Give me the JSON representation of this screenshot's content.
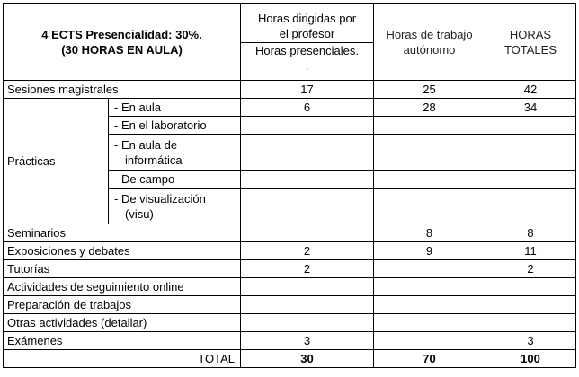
{
  "header": {
    "title_line1": "4 ECTS Presencialidad: 30%.",
    "title_line2": "(30 HORAS EN AULA)",
    "col_prof_line1": "Horas dirigidas por",
    "col_prof_line2": "el profesor",
    "col_presenciales_line1": "Horas presenciales.",
    "col_presenciales_line2": ".",
    "col_autonomo_line1": "Horas de trabajo",
    "col_autonomo_line2": "autónomo",
    "col_totales_line1": "HORAS",
    "col_totales_line2": "TOTALES"
  },
  "rows": {
    "magistrales": {
      "label": "Sesiones magistrales",
      "pres": "17",
      "auto": "25",
      "total": "42"
    },
    "practicas_label": "Prácticas",
    "aula": {
      "label": "- En aula",
      "pres": "6",
      "auto": "28",
      "total": "34"
    },
    "laboratorio": {
      "label": "- En el laboratorio"
    },
    "informatica": {
      "label_line1": "- En aula de",
      "label_line2": "informática"
    },
    "campo": {
      "label": "- De campo"
    },
    "visualizacion": {
      "label_line1": "- De visualización",
      "label_line2": "(visu)"
    },
    "seminarios": {
      "label": "Seminarios",
      "auto": "8",
      "total": "8"
    },
    "exposiciones": {
      "label": "Exposiciones y debates",
      "pres": "2",
      "auto": "9",
      "total": "11"
    },
    "tutorias": {
      "label": "Tutorías",
      "pres": "2",
      "total": "2"
    },
    "seguimiento": {
      "label": "Actividades de seguimiento online"
    },
    "preparacion": {
      "label": "Preparación de trabajos"
    },
    "otras": {
      "label": "Otras actividades (detallar)"
    },
    "examenes": {
      "label": "Exámenes",
      "pres": "3",
      "total": "3"
    },
    "total": {
      "label": "TOTAL",
      "pres": "30",
      "auto": "70",
      "total": "100"
    }
  }
}
